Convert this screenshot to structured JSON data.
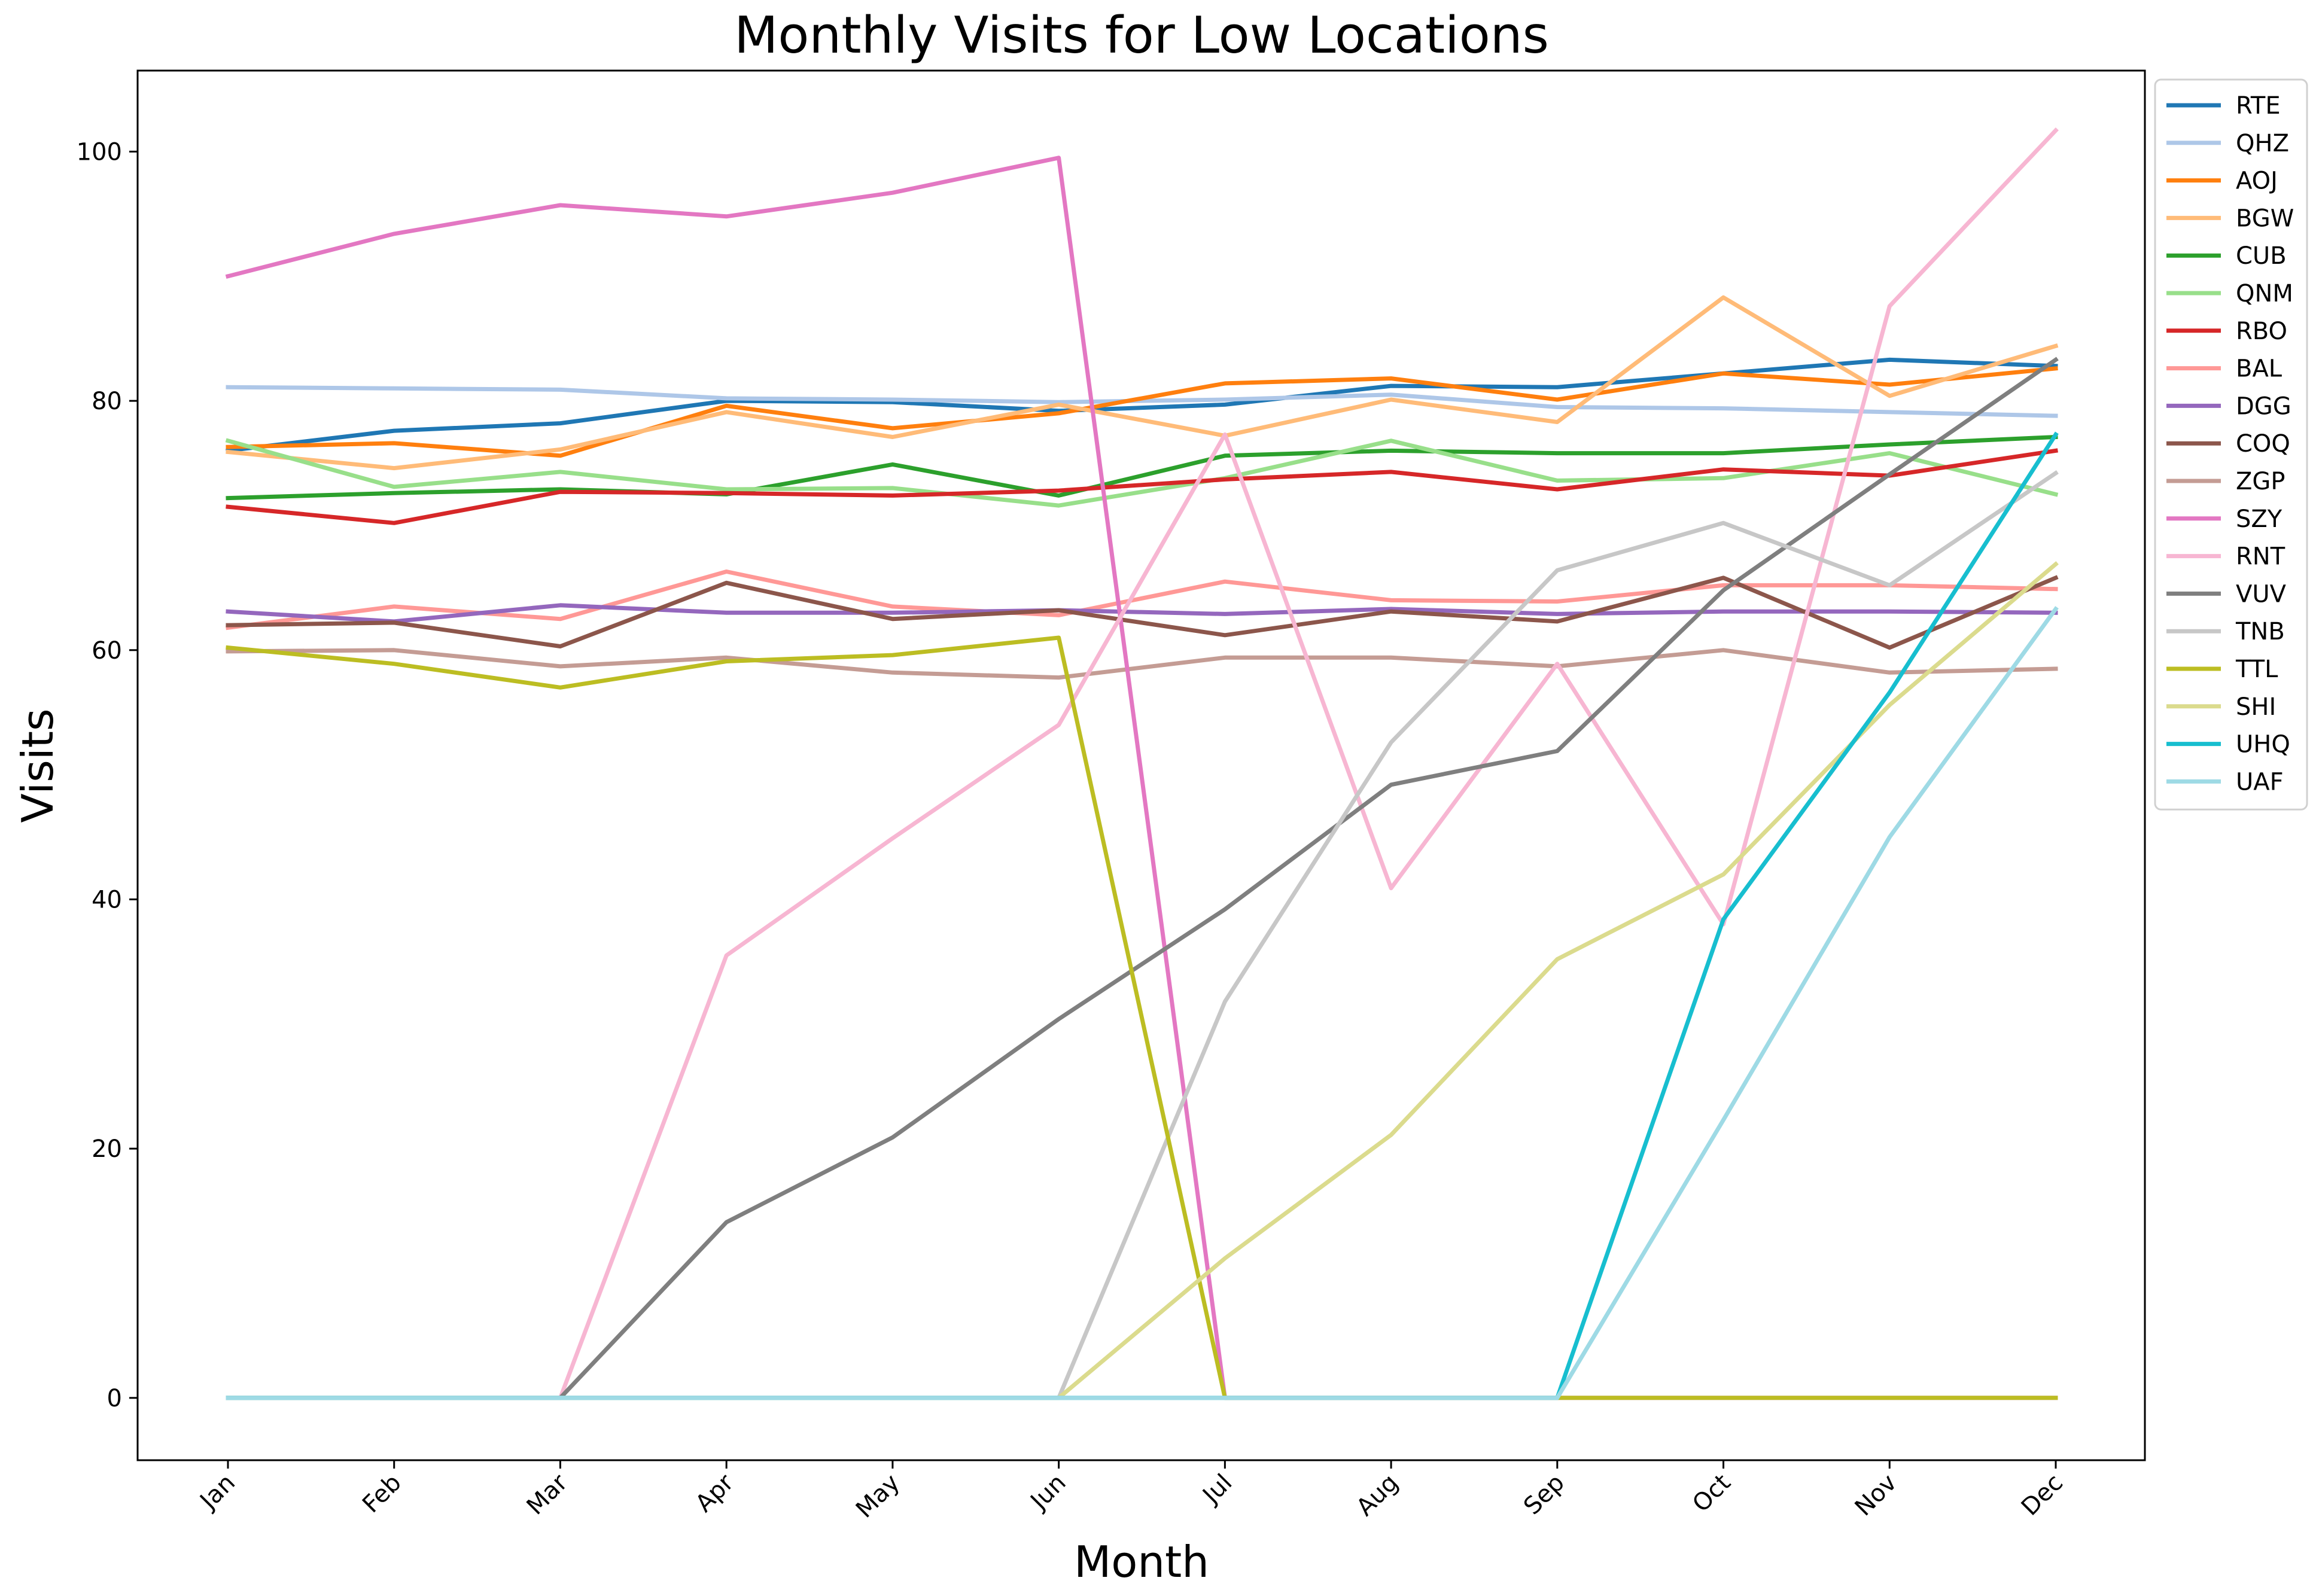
{
  "chart_data": {
    "type": "line",
    "title": "Monthly Visits for Low Locations",
    "xlabel": "Month",
    "ylabel": "Visits",
    "categories": [
      "Jan",
      "Feb",
      "Mar",
      "Apr",
      "May",
      "Jun",
      "Jul",
      "Aug",
      "Sep",
      "Oct",
      "Nov",
      "Dec"
    ],
    "ylim": [
      -5,
      106.5
    ],
    "yticks": [
      0,
      20,
      40,
      60,
      80,
      100
    ],
    "grid": false,
    "legend_position": "upper-right-outside",
    "series": [
      {
        "name": "RTE",
        "color": "#1f77b4",
        "values": [
          76.0,
          77.6,
          78.2,
          80.0,
          79.9,
          79.2,
          79.7,
          81.2,
          81.1,
          82.2,
          83.3,
          82.8
        ]
      },
      {
        "name": "QHZ",
        "color": "#aec7e8",
        "values": [
          81.1,
          81.0,
          80.9,
          80.2,
          80.1,
          79.9,
          80.1,
          80.5,
          79.5,
          79.4,
          79.1,
          78.8
        ]
      },
      {
        "name": "AOJ",
        "color": "#ff7f0e",
        "values": [
          76.3,
          76.6,
          75.6,
          79.6,
          77.8,
          79.0,
          81.4,
          81.8,
          80.1,
          82.2,
          81.3,
          82.6
        ]
      },
      {
        "name": "BGW",
        "color": "#ffbb78",
        "values": [
          75.9,
          74.6,
          76.1,
          79.1,
          77.1,
          79.7,
          77.2,
          80.1,
          78.3,
          88.3,
          80.4,
          84.4
        ]
      },
      {
        "name": "CUB",
        "color": "#2ca02c",
        "values": [
          72.2,
          72.6,
          72.9,
          72.5,
          74.9,
          72.4,
          75.6,
          76.0,
          75.8,
          75.8,
          76.5,
          77.1
        ]
      },
      {
        "name": "QNM",
        "color": "#98df8a",
        "values": [
          76.8,
          73.1,
          74.3,
          72.9,
          73.0,
          71.6,
          73.8,
          76.8,
          73.6,
          73.8,
          75.8,
          72.5
        ]
      },
      {
        "name": "RBO",
        "color": "#d62728",
        "values": [
          71.5,
          70.2,
          72.7,
          72.6,
          72.4,
          72.8,
          73.7,
          74.3,
          72.9,
          74.5,
          74.0,
          76.0
        ]
      },
      {
        "name": "BAL",
        "color": "#ff9896",
        "values": [
          61.8,
          63.5,
          62.5,
          66.3,
          63.5,
          62.8,
          65.5,
          64.0,
          63.9,
          65.2,
          65.2,
          64.9
        ]
      },
      {
        "name": "DGG",
        "color": "#9467bd",
        "values": [
          63.1,
          62.3,
          63.6,
          63.0,
          63.0,
          63.2,
          62.9,
          63.3,
          62.9,
          63.1,
          63.1,
          63.0
        ]
      },
      {
        "name": "COQ",
        "color": "#8c564b",
        "values": [
          62.0,
          62.2,
          60.3,
          65.4,
          62.5,
          63.2,
          61.2,
          63.1,
          62.3,
          65.8,
          60.2,
          65.8
        ]
      },
      {
        "name": "ZGP",
        "color": "#c49c94",
        "values": [
          59.9,
          60.0,
          58.7,
          59.4,
          58.2,
          57.8,
          59.4,
          59.4,
          58.7,
          60.0,
          58.2,
          58.5
        ]
      },
      {
        "name": "SZY",
        "color": "#e377c2",
        "values": [
          90.0,
          93.4,
          95.7,
          94.8,
          96.7,
          99.5,
          0,
          0,
          0,
          0,
          0,
          0
        ]
      },
      {
        "name": "RNT",
        "color": "#f7b6d2",
        "values": [
          0,
          0,
          0,
          35.5,
          44.9,
          54.0,
          77.3,
          40.9,
          58.9,
          38.0,
          87.6,
          101.7
        ]
      },
      {
        "name": "VUV",
        "color": "#7f7f7f",
        "values": [
          0,
          0,
          0,
          14.1,
          20.9,
          30.4,
          39.2,
          49.2,
          51.9,
          64.8,
          74.1,
          83.3
        ]
      },
      {
        "name": "TNB",
        "color": "#c7c7c7",
        "values": [
          0,
          0,
          0,
          0,
          0,
          0,
          31.8,
          52.6,
          66.4,
          70.2,
          65.2,
          74.2
        ]
      },
      {
        "name": "TTL",
        "color": "#bcbd22",
        "values": [
          60.2,
          58.9,
          57.0,
          59.1,
          59.6,
          61.0,
          0,
          0,
          0,
          0,
          0,
          0
        ]
      },
      {
        "name": "SHI",
        "color": "#dbdb8d",
        "values": [
          0,
          0,
          0,
          0,
          0,
          0,
          11.2,
          21.1,
          35.2,
          42.0,
          55.6,
          66.9
        ]
      },
      {
        "name": "UHQ",
        "color": "#17becf",
        "values": [
          0,
          0,
          0,
          0,
          0,
          0,
          0,
          0,
          0,
          38.4,
          56.6,
          77.3
        ]
      },
      {
        "name": "UAF",
        "color": "#9edae5",
        "values": [
          0,
          0,
          0,
          0,
          0,
          0,
          0,
          0,
          0,
          22.3,
          45.0,
          63.3
        ]
      }
    ]
  }
}
